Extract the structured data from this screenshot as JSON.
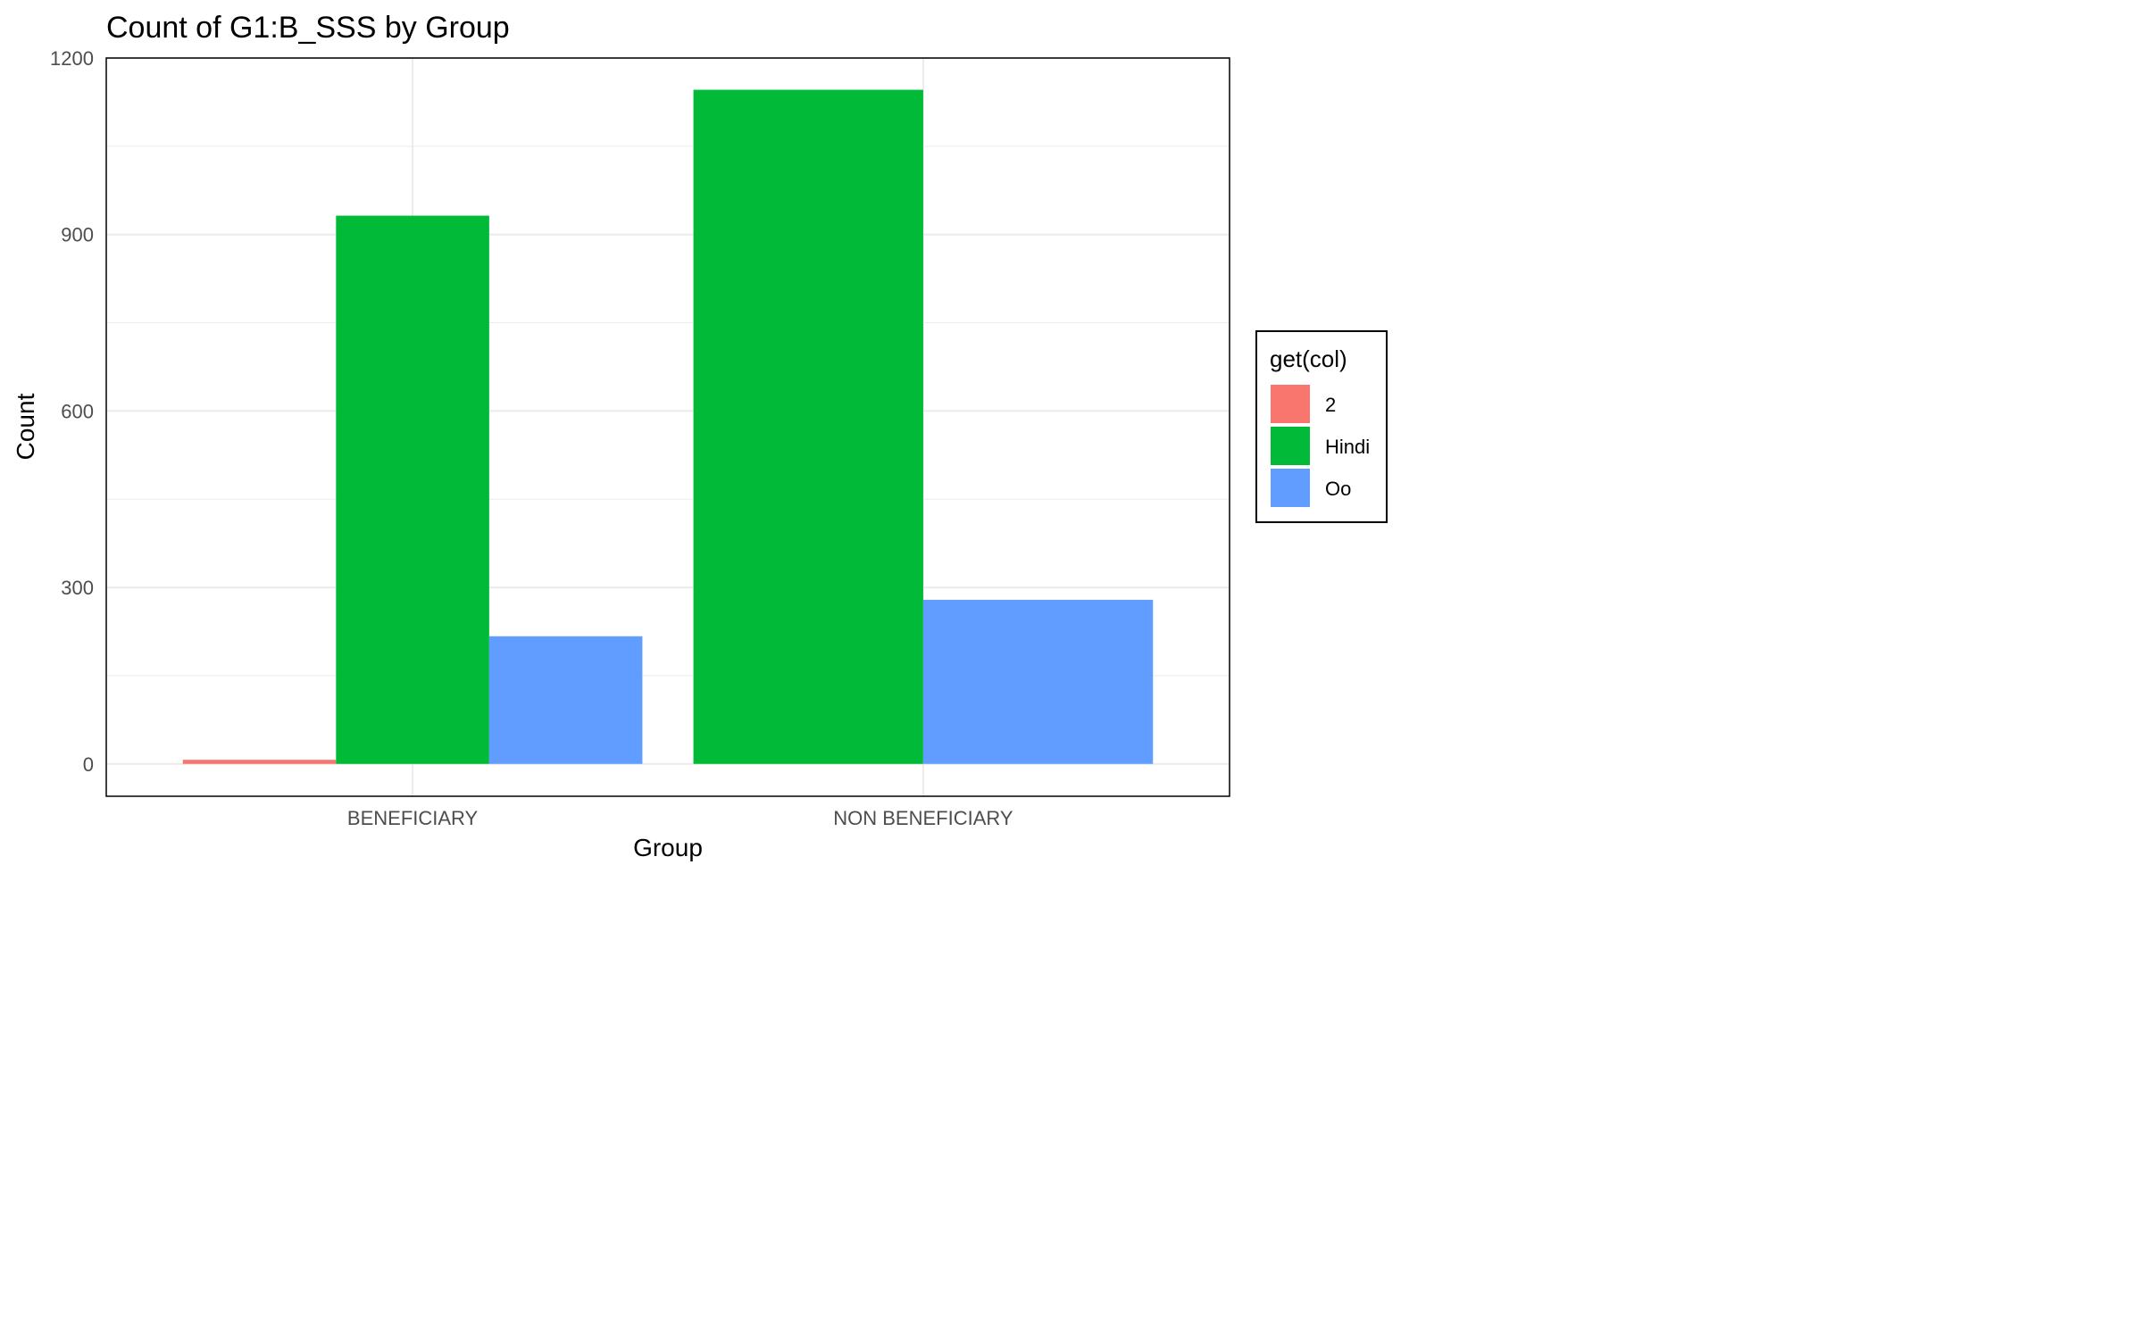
{
  "chart_data": {
    "type": "bar",
    "title": "Count of G1:B_SSS by Group",
    "xlabel": "Group",
    "ylabel": "Count",
    "categories": [
      "BENEFICIARY",
      "NON BENEFICIARY"
    ],
    "series": [
      {
        "name": "2",
        "color": "#F8766D",
        "values": [
          7,
          null
        ]
      },
      {
        "name": "Hindi",
        "color": "#00BA38",
        "values": [
          932,
          1146
        ]
      },
      {
        "name": "Oo",
        "color": "#619CFF",
        "values": [
          217,
          279
        ]
      }
    ],
    "ylim": [
      -55,
      1200
    ],
    "yticks": [
      0,
      300,
      600,
      900,
      1200
    ],
    "grid": true,
    "legend": {
      "title": "get(col)",
      "position": "right"
    }
  }
}
